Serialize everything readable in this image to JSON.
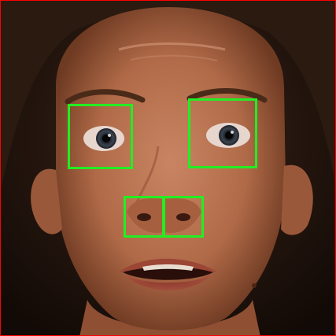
{
  "colors": {
    "border": "#ff0000",
    "detection_box": "#22ee22",
    "skin": "#b9704d",
    "skin_shadow": "#8a4a30",
    "hair": "#2a1a10",
    "background": "#1a0f0a"
  },
  "detections": [
    {
      "label": "left-eye"
    },
    {
      "label": "right-eye"
    },
    {
      "label": "left-nostril"
    },
    {
      "label": "right-nostril"
    }
  ]
}
